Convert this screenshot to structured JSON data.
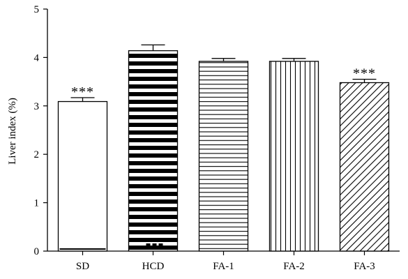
{
  "chart_data": {
    "type": "bar",
    "title": "",
    "xlabel": "",
    "ylabel": "Liver index (%)",
    "ylim": [
      0,
      5
    ],
    "yticks": [
      "0",
      "1",
      "2",
      "3",
      "4",
      "5"
    ],
    "categories": [
      "SD",
      "HCD",
      "FA-1",
      "FA-2",
      "FA-3"
    ],
    "values": [
      3.09,
      4.14,
      3.92,
      3.92,
      3.48
    ],
    "errors": [
      0.08,
      0.12,
      0.06,
      0.06,
      0.07
    ],
    "annotations": [
      "***",
      "",
      "",
      "",
      "***"
    ],
    "fill_patterns": [
      "white",
      "horizontal-thick",
      "horizontal-thin",
      "vertical-thin",
      "diagonal"
    ],
    "grid": false,
    "legend": "none"
  }
}
